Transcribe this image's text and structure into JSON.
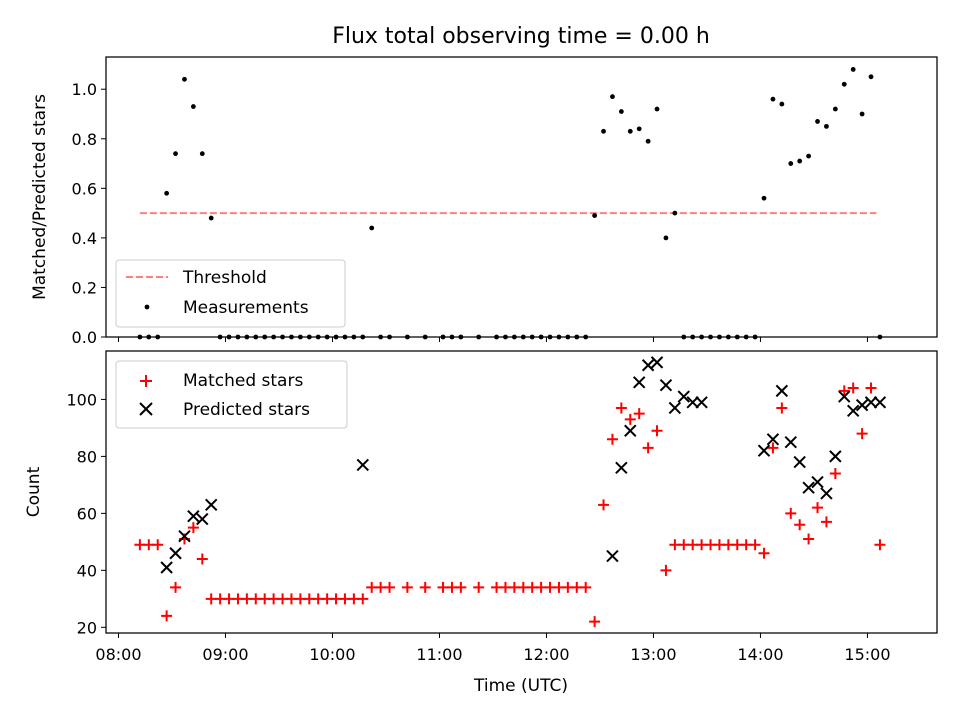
{
  "chart_data": [
    {
      "type": "scatter",
      "title": "Flux total observing time = 0.00 h",
      "xlabel": "",
      "ylabel": "Matched/Predicted stars",
      "ylim": [
        0,
        1.13
      ],
      "yticks": [
        "0.0",
        "0.2",
        "0.4",
        "0.6",
        "0.8",
        "1.0"
      ],
      "legend_placement": "lower-left",
      "colors": {
        "threshold": "#ff7f7f",
        "measurements": "#000000"
      },
      "threshold": {
        "name": "Threshold",
        "value": 0.5,
        "x": [
          "08:12",
          "15:05"
        ]
      },
      "series": [
        {
          "name": "Measurements",
          "x": [
            "08:12",
            "08:17",
            "08:22",
            "08:27",
            "08:32",
            "08:37",
            "08:42",
            "08:47",
            "08:52",
            "08:57",
            "09:02",
            "09:07",
            "09:12",
            "09:17",
            "09:22",
            "09:27",
            "09:32",
            "09:37",
            "09:42",
            "09:47",
            "09:52",
            "09:57",
            "10:02",
            "10:07",
            "10:12",
            "10:17",
            "10:22",
            "10:27",
            "10:32",
            "10:42",
            "10:52",
            "11:02",
            "11:07",
            "11:12",
            "11:22",
            "11:32",
            "11:37",
            "11:42",
            "11:47",
            "11:52",
            "11:57",
            "12:02",
            "12:07",
            "12:12",
            "12:17",
            "12:22",
            "12:27",
            "12:32",
            "12:37",
            "12:42",
            "12:47",
            "12:52",
            "12:57",
            "13:02",
            "13:07",
            "13:12",
            "13:17",
            "13:22",
            "13:27",
            "13:32",
            "13:37",
            "13:42",
            "13:47",
            "13:52",
            "13:57",
            "14:02",
            "14:07",
            "14:12",
            "14:17",
            "14:22",
            "14:27",
            "14:32",
            "14:37",
            "14:42",
            "14:47",
            "14:52",
            "14:57",
            "15:02",
            "15:07"
          ],
          "values": [
            0,
            0,
            0,
            0.58,
            0.74,
            1.04,
            0.93,
            0.74,
            0.48,
            0,
            0,
            0,
            0,
            0,
            0,
            0,
            0,
            0,
            0,
            0,
            0,
            0,
            0,
            0,
            0,
            0,
            0.44,
            0,
            0,
            0,
            0,
            0,
            0,
            0,
            0,
            0,
            0,
            0,
            0,
            0,
            0,
            0,
            0,
            0,
            0,
            0,
            0.49,
            0.83,
            0.97,
            0.91,
            0.83,
            0.84,
            0.79,
            0.92,
            0.4,
            0.5,
            0,
            0,
            0,
            0,
            0,
            0,
            0,
            0,
            0,
            0.56,
            0.96,
            0.94,
            0.7,
            0.71,
            0.73,
            0.87,
            0.85,
            0.92,
            1.02,
            1.08,
            0.9,
            1.05,
            0
          ]
        }
      ]
    },
    {
      "type": "scatter",
      "title": "",
      "xlabel": "Time (UTC)",
      "ylabel": "Count",
      "ylim": [
        18,
        117
      ],
      "yticks": [
        "20",
        "40",
        "60",
        "80",
        "100"
      ],
      "xticks": [
        "08:00",
        "09:00",
        "10:00",
        "11:00",
        "12:00",
        "13:00",
        "14:00",
        "15:00"
      ],
      "xlim": [
        "07:53",
        "15:39"
      ],
      "legend_placement": "upper-left",
      "colors": {
        "matched": "#ff0000",
        "predicted": "#000000"
      },
      "series": [
        {
          "name": "Matched stars",
          "marker": "plus",
          "x": [
            "08:12",
            "08:17",
            "08:22",
            "08:27",
            "08:32",
            "08:37",
            "08:42",
            "08:47",
            "08:52",
            "08:57",
            "09:02",
            "09:07",
            "09:12",
            "09:17",
            "09:22",
            "09:27",
            "09:32",
            "09:37",
            "09:42",
            "09:47",
            "09:52",
            "09:57",
            "10:02",
            "10:07",
            "10:12",
            "10:17",
            "10:22",
            "10:27",
            "10:32",
            "10:42",
            "10:52",
            "11:02",
            "11:07",
            "11:12",
            "11:22",
            "11:32",
            "11:37",
            "11:42",
            "11:47",
            "11:52",
            "11:57",
            "12:02",
            "12:07",
            "12:12",
            "12:17",
            "12:22",
            "12:27",
            "12:32",
            "12:37",
            "12:42",
            "12:47",
            "12:52",
            "12:57",
            "13:02",
            "13:07",
            "13:12",
            "13:17",
            "13:22",
            "13:27",
            "13:32",
            "13:37",
            "13:42",
            "13:47",
            "13:52",
            "13:57",
            "14:02",
            "14:07",
            "14:12",
            "14:17",
            "14:22",
            "14:27",
            "14:32",
            "14:37",
            "14:42",
            "14:47",
            "14:52",
            "14:57",
            "15:02",
            "15:07"
          ],
          "values": [
            49,
            49,
            49,
            24,
            34,
            51,
            55,
            44,
            30,
            30,
            30,
            30,
            30,
            30,
            30,
            30,
            30,
            30,
            30,
            30,
            30,
            30,
            30,
            30,
            30,
            30,
            34,
            34,
            34,
            34,
            34,
            34,
            34,
            34,
            34,
            34,
            34,
            34,
            34,
            34,
            34,
            34,
            34,
            34,
            34,
            34,
            22,
            63,
            86,
            97,
            93,
            95,
            83,
            89,
            40,
            49,
            49,
            49,
            49,
            49,
            49,
            49,
            49,
            49,
            49,
            46,
            83,
            97,
            60,
            56,
            51,
            62,
            57,
            74,
            103,
            104,
            88,
            104,
            49
          ]
        },
        {
          "name": "Predicted stars",
          "marker": "x",
          "x": [
            "08:27",
            "08:32",
            "08:37",
            "08:42",
            "08:47",
            "08:52",
            "10:17",
            "12:37",
            "12:42",
            "12:47",
            "12:52",
            "12:57",
            "13:02",
            "13:07",
            "13:12",
            "13:17",
            "13:22",
            "13:27",
            "14:02",
            "14:07",
            "14:12",
            "14:17",
            "14:22",
            "14:27",
            "14:32",
            "14:37",
            "14:42",
            "14:47",
            "14:52",
            "14:57",
            "15:02",
            "15:07"
          ],
          "values": [
            41,
            46,
            52,
            59,
            58,
            63,
            77,
            45,
            76,
            89,
            106,
            112,
            113,
            105,
            97,
            101,
            99,
            99,
            82,
            86,
            103,
            85,
            78,
            69,
            71,
            67,
            80,
            101,
            96,
            98,
            99,
            99
          ]
        }
      ]
    }
  ]
}
